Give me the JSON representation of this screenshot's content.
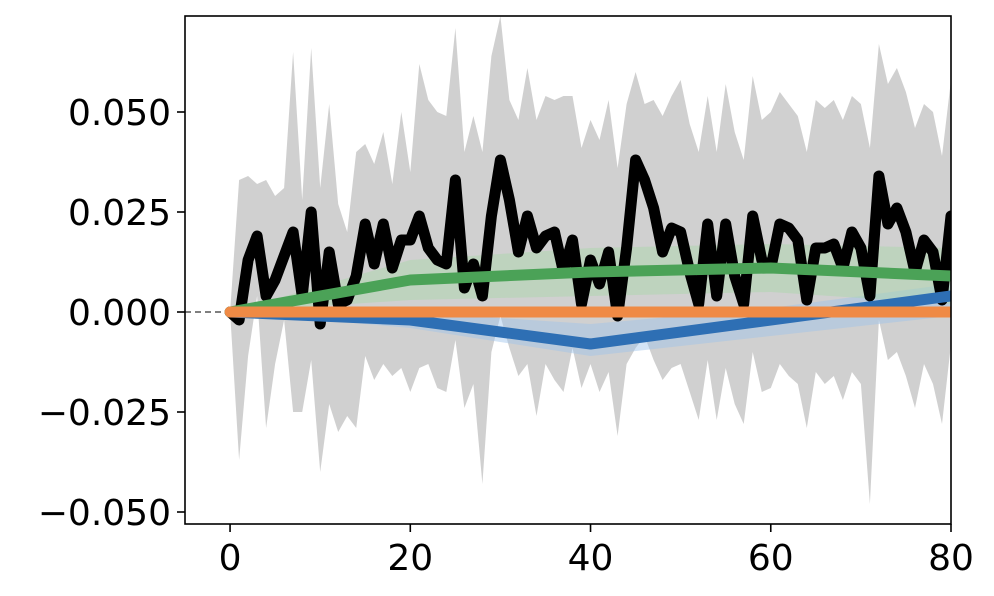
{
  "chart_data": {
    "type": "line",
    "title": "",
    "xlabel": "",
    "ylabel": "",
    "xlim": [
      -5,
      80
    ],
    "ylim": [
      -0.053,
      0.074
    ],
    "x_ticks": [
      0,
      20,
      40,
      60,
      80
    ],
    "x_tick_labels": [
      "0",
      "20",
      "40",
      "60",
      "80"
    ],
    "y_ticks": [
      -0.05,
      -0.025,
      0.0,
      0.025,
      0.05
    ],
    "y_tick_labels": [
      "−0.050",
      "−0.025",
      "0.000",
      "0.025",
      "0.050"
    ],
    "grid": false,
    "legend": false,
    "reference_line": {
      "y": 0,
      "style": "dashed",
      "color": "#7f7f7f"
    },
    "series": [
      {
        "color": "#000000",
        "band_color": "#c0c0c0",
        "x": [
          0,
          1,
          2,
          3,
          4,
          5,
          6,
          7,
          8,
          9,
          10,
          11,
          12,
          13,
          14,
          15,
          16,
          17,
          18,
          19,
          20,
          21,
          22,
          23,
          24,
          25,
          26,
          27,
          28,
          29,
          30,
          31,
          32,
          33,
          34,
          35,
          36,
          37,
          38,
          39,
          40,
          41,
          42,
          43,
          44,
          45,
          46,
          47,
          48,
          49,
          50,
          51,
          52,
          53,
          54,
          55,
          56,
          57,
          58,
          59,
          60,
          61,
          62,
          63,
          64,
          65,
          66,
          67,
          68,
          69,
          70,
          71,
          72,
          73,
          74,
          75,
          76,
          77,
          78,
          79,
          80
        ],
        "values": [
          0.0,
          -0.002,
          0.013,
          0.019,
          0.004,
          0.008,
          0.014,
          0.02,
          0.004,
          0.025,
          -0.003,
          0.015,
          0.002,
          0.003,
          0.009,
          0.022,
          0.012,
          0.022,
          0.011,
          0.018,
          0.018,
          0.024,
          0.016,
          0.013,
          0.012,
          0.033,
          0.006,
          0.012,
          0.004,
          0.024,
          0.038,
          0.028,
          0.015,
          0.024,
          0.016,
          0.019,
          0.02,
          0.01,
          0.018,
          0.002,
          0.013,
          0.007,
          0.015,
          -0.001,
          0.016,
          0.038,
          0.033,
          0.026,
          0.015,
          0.021,
          0.02,
          0.01,
          0.002,
          0.022,
          0.004,
          0.022,
          0.009,
          0.002,
          0.024,
          0.013,
          0.011,
          0.022,
          0.021,
          0.018,
          0.003,
          0.016,
          0.016,
          0.017,
          0.011,
          0.02,
          0.016,
          0.004,
          0.034,
          0.022,
          0.026,
          0.02,
          0.01,
          0.018,
          0.015,
          0.003,
          0.024
        ],
        "upper": [
          0.0,
          0.033,
          0.034,
          0.032,
          0.033,
          0.029,
          0.031,
          0.065,
          0.028,
          0.066,
          0.031,
          0.052,
          0.027,
          0.02,
          0.04,
          0.042,
          0.037,
          0.045,
          0.032,
          0.05,
          0.035,
          0.062,
          0.053,
          0.05,
          0.049,
          0.071,
          0.04,
          0.049,
          0.04,
          0.064,
          0.074,
          0.053,
          0.048,
          0.061,
          0.048,
          0.054,
          0.053,
          0.054,
          0.054,
          0.041,
          0.048,
          0.043,
          0.053,
          0.036,
          0.052,
          0.06,
          0.052,
          0.053,
          0.049,
          0.054,
          0.058,
          0.047,
          0.04,
          0.054,
          0.04,
          0.057,
          0.045,
          0.038,
          0.059,
          0.048,
          0.05,
          0.055,
          0.052,
          0.049,
          0.04,
          0.053,
          0.051,
          0.053,
          0.048,
          0.054,
          0.052,
          0.041,
          0.067,
          0.057,
          0.061,
          0.055,
          0.046,
          0.052,
          0.05,
          0.039,
          0.058
        ],
        "lower": [
          0.0,
          -0.037,
          -0.011,
          0.004,
          -0.029,
          -0.013,
          -0.002,
          -0.025,
          -0.025,
          -0.012,
          -0.04,
          -0.023,
          -0.03,
          -0.026,
          -0.029,
          -0.011,
          -0.017,
          -0.013,
          -0.016,
          -0.014,
          -0.02,
          -0.014,
          -0.013,
          -0.019,
          -0.02,
          -0.007,
          -0.024,
          -0.018,
          -0.043,
          -0.01,
          -0.001,
          -0.009,
          -0.016,
          -0.013,
          -0.026,
          -0.013,
          -0.017,
          -0.02,
          -0.009,
          -0.019,
          -0.013,
          -0.02,
          -0.015,
          -0.031,
          -0.013,
          -0.009,
          -0.006,
          -0.012,
          -0.017,
          -0.014,
          -0.013,
          -0.02,
          -0.027,
          -0.012,
          -0.027,
          -0.014,
          -0.023,
          -0.028,
          -0.01,
          -0.02,
          -0.019,
          -0.013,
          -0.016,
          -0.018,
          -0.029,
          -0.015,
          -0.018,
          -0.016,
          -0.022,
          -0.015,
          -0.018,
          -0.048,
          -0.002,
          -0.012,
          -0.01,
          -0.016,
          -0.024,
          -0.013,
          -0.018,
          -0.028,
          -0.008
        ]
      },
      {
        "color": "#2e6fb4",
        "band_color": "#9ec4ea",
        "x": [
          0,
          20,
          40,
          60,
          80
        ],
        "values": [
          0.0,
          -0.002,
          -0.008,
          -0.002,
          0.004
        ],
        "upper": [
          0.0,
          0.0,
          -0.003,
          0.001,
          0.007
        ],
        "lower": [
          0.0,
          -0.004,
          -0.011,
          -0.006,
          -0.001
        ]
      },
      {
        "color": "#4ba257",
        "band_color": "#a9d8a8",
        "x": [
          0,
          20,
          40,
          60,
          80
        ],
        "values": [
          0.0,
          0.008,
          0.01,
          0.011,
          0.009
        ],
        "upper": [
          0.0,
          0.013,
          0.016,
          0.017,
          0.016
        ],
        "lower": [
          0.0,
          0.003,
          0.004,
          0.005,
          0.002
        ]
      },
      {
        "color": "#ef8a45",
        "band_color": "#f6c79c",
        "x": [
          0,
          20,
          40,
          60,
          80
        ],
        "values": [
          0.0,
          0.0,
          0.0,
          0.0,
          0.0
        ],
        "upper": [
          0.0,
          0.001,
          0.001,
          0.001,
          0.001
        ],
        "lower": [
          0.0,
          -0.001,
          -0.001,
          -0.001,
          -0.001
        ]
      }
    ]
  }
}
